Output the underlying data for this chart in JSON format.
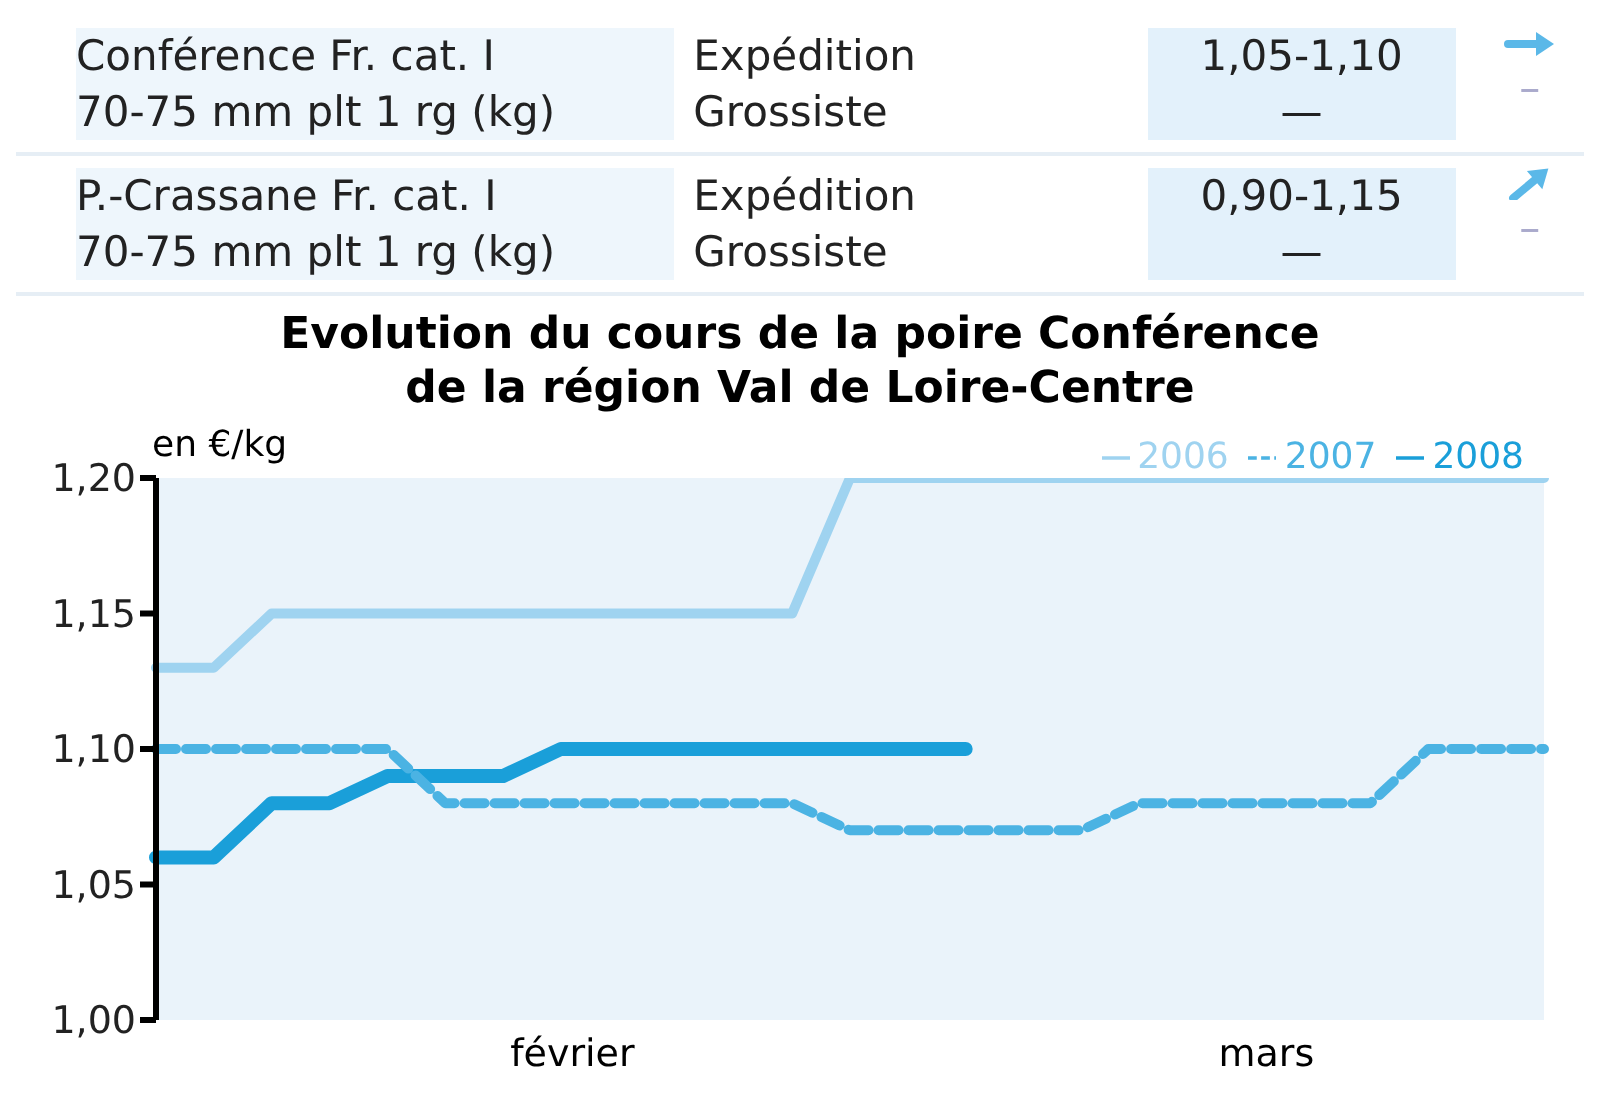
{
  "chart_data": [
    {
      "type": "other",
      "annotations": [
        "Conférence Fr. cat. I\n70-75 mm plt 1 rg (kg)",
        "Expédition\nGrossiste",
        "1,05-1,10\n—",
        "–",
        "P.-Crassane Fr. cat. I\n70-75 mm plt 1 rg (kg)",
        "Expédition\nGrossiste",
        "0,90-1,15\n—",
        "–"
      ]
    },
    {
      "type": "line",
      "title": "Evolution du cours de la poire Conférence\nde la région Val de Loire-Centre",
      "ylabel": "en €/kg",
      "categories": [
        null,
        null,
        null,
        null,
        null,
        null,
        null,
        null,
        null,
        null,
        null,
        null,
        null,
        null,
        null,
        null,
        null,
        null,
        null,
        null,
        null,
        null,
        null,
        null,
        null
      ],
      "series": [
        {
          "name": "2008",
          "color": "#1a9fd9",
          "line_style": "solid",
          "values": [
            1.06,
            1.06,
            1.08,
            1.08,
            1.09,
            1.09,
            1.09,
            1.1,
            1.1,
            1.1,
            1.1,
            1.1,
            1.1,
            1.1,
            1.1,
            null,
            null,
            null,
            null,
            null,
            null,
            null,
            null,
            null,
            null
          ]
        },
        {
          "name": "2007",
          "color": "#4bb3e3",
          "line_style": "dashed",
          "values": [
            1.1,
            1.1,
            1.1,
            1.1,
            1.1,
            1.08,
            1.08,
            1.08,
            1.08,
            1.08,
            1.08,
            1.08,
            1.07,
            1.07,
            1.07,
            1.07,
            1.07,
            1.08,
            1.08,
            1.08,
            1.08,
            1.08,
            1.1,
            1.1,
            1.1
          ]
        },
        {
          "name": "2006",
          "color": "#9fd3f0",
          "line_style": "solid",
          "values": [
            1.13,
            1.13,
            1.15,
            1.15,
            1.15,
            1.15,
            1.15,
            1.15,
            1.15,
            1.15,
            1.15,
            1.15,
            1.2,
            1.2,
            1.2,
            1.2,
            1.2,
            1.2,
            1.2,
            1.2,
            1.2,
            1.2,
            1.2,
            1.2,
            1.2
          ]
        }
      ],
      "ylim": [
        1.0,
        1.2
      ],
      "yticks": [
        {
          "value": 1.0,
          "label": "1,00"
        },
        {
          "value": 1.05,
          "label": "1,05"
        },
        {
          "value": 1.1,
          "label": "1,10"
        },
        {
          "value": 1.15,
          "label": "1,15"
        },
        {
          "value": 1.2,
          "label": "1,20"
        }
      ],
      "annotations": [
        "février",
        "mars"
      ],
      "legend": "top",
      "grid": false,
      "marker": "none"
    }
  ]
}
